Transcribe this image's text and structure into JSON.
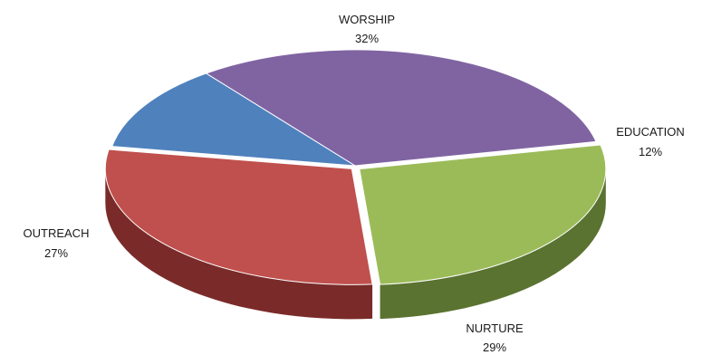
{
  "chart_data": {
    "type": "pie",
    "style": "3d",
    "slices": [
      {
        "name": "WORSHIP",
        "label": "WORSHIP",
        "value": 32,
        "value_label": "32%",
        "color": "#8064A2"
      },
      {
        "name": "EDUCATION",
        "label": "EDUCATION",
        "value": 12,
        "value_label": "12%",
        "color": "#4F81BD"
      },
      {
        "name": "NURTURE",
        "label": "NURTURE",
        "value": 29,
        "value_label": "29%",
        "color": "#C0504D"
      },
      {
        "name": "OUTREACH",
        "label": "OUTREACH",
        "value": 27,
        "value_label": "27%",
        "color": "#9BBB59"
      }
    ],
    "side_colors": {
      "WORSHIP": "#4B3A63",
      "EDUCATION": "#2C4D74",
      "NURTURE": "#7A2B29",
      "OUTREACH": "#5A7331"
    },
    "legend": "none",
    "labels_position": "outside"
  }
}
